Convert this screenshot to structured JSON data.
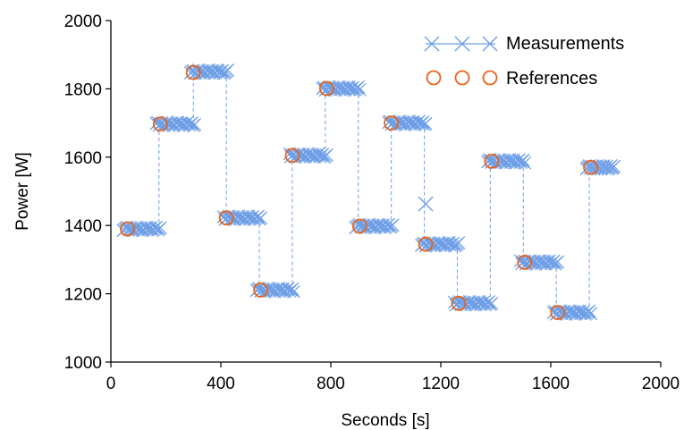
{
  "chart_data": {
    "type": "scatter",
    "xlabel": "Seconds [s]",
    "ylabel": "Power [W]",
    "xlim": [
      0,
      2000
    ],
    "ylim": [
      1000,
      2000
    ],
    "xticks": [
      0,
      400,
      800,
      1200,
      1600,
      2000
    ],
    "yticks": [
      1000,
      1200,
      1400,
      1600,
      1800,
      2000
    ],
    "grid": false,
    "legend_position": "top-right",
    "colors": {
      "measurements": "#6f9fe6",
      "references": "#e8641b"
    },
    "series": [
      {
        "name": "Measurements",
        "marker": "x",
        "segments": [
          {
            "x_start": 45,
            "x_end": 180,
            "y": 1390
          },
          {
            "x_start": 165,
            "x_end": 305,
            "y": 1697
          },
          {
            "x_start": 290,
            "x_end": 425,
            "y": 1850
          },
          {
            "x_start": 410,
            "x_end": 545,
            "y": 1422
          },
          {
            "x_start": 530,
            "x_end": 665,
            "y": 1211
          },
          {
            "x_start": 650,
            "x_end": 785,
            "y": 1605
          },
          {
            "x_start": 770,
            "x_end": 905,
            "y": 1801
          },
          {
            "x_start": 890,
            "x_end": 1025,
            "y": 1398
          },
          {
            "x_start": 1010,
            "x_end": 1145,
            "y": 1700
          },
          {
            "x_start": 1130,
            "x_end": 1265,
            "y": 1345
          },
          {
            "x_start": 1250,
            "x_end": 1385,
            "y": 1172
          },
          {
            "x_start": 1370,
            "x_end": 1505,
            "y": 1588
          },
          {
            "x_start": 1490,
            "x_end": 1625,
            "y": 1292
          },
          {
            "x_start": 1610,
            "x_end": 1745,
            "y": 1145
          },
          {
            "x_start": 1730,
            "x_end": 1830,
            "y": 1570
          }
        ],
        "outliers": [
          {
            "x": 1145,
            "y": 1463
          }
        ]
      },
      {
        "name": "References",
        "marker": "o",
        "points": [
          {
            "x": 60,
            "y": 1390
          },
          {
            "x": 180,
            "y": 1697
          },
          {
            "x": 300,
            "y": 1848
          },
          {
            "x": 420,
            "y": 1422
          },
          {
            "x": 545,
            "y": 1211
          },
          {
            "x": 660,
            "y": 1605
          },
          {
            "x": 785,
            "y": 1801
          },
          {
            "x": 905,
            "y": 1398
          },
          {
            "x": 1020,
            "y": 1700
          },
          {
            "x": 1145,
            "y": 1345
          },
          {
            "x": 1265,
            "y": 1172
          },
          {
            "x": 1385,
            "y": 1588
          },
          {
            "x": 1505,
            "y": 1292
          },
          {
            "x": 1625,
            "y": 1145
          },
          {
            "x": 1745,
            "y": 1570
          }
        ]
      }
    ]
  }
}
